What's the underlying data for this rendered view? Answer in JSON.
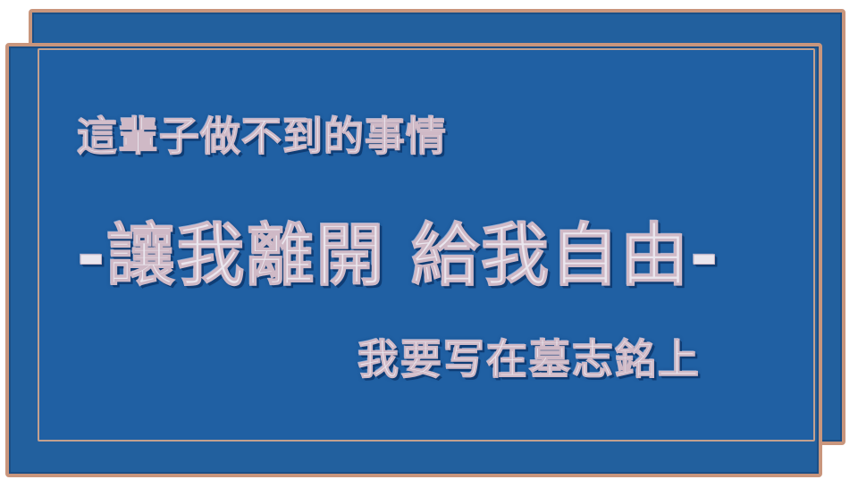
{
  "sign": {
    "line1": "這輩子做不到的事情",
    "line2": "-讓我離開 給我自由-",
    "line3": "我要写在墓志銘上"
  },
  "colors": {
    "plate_blue": "#22609e",
    "border_copper": "#c9967d",
    "text_silver": "#eae6ee",
    "text_shadow": "#0f3d75"
  }
}
